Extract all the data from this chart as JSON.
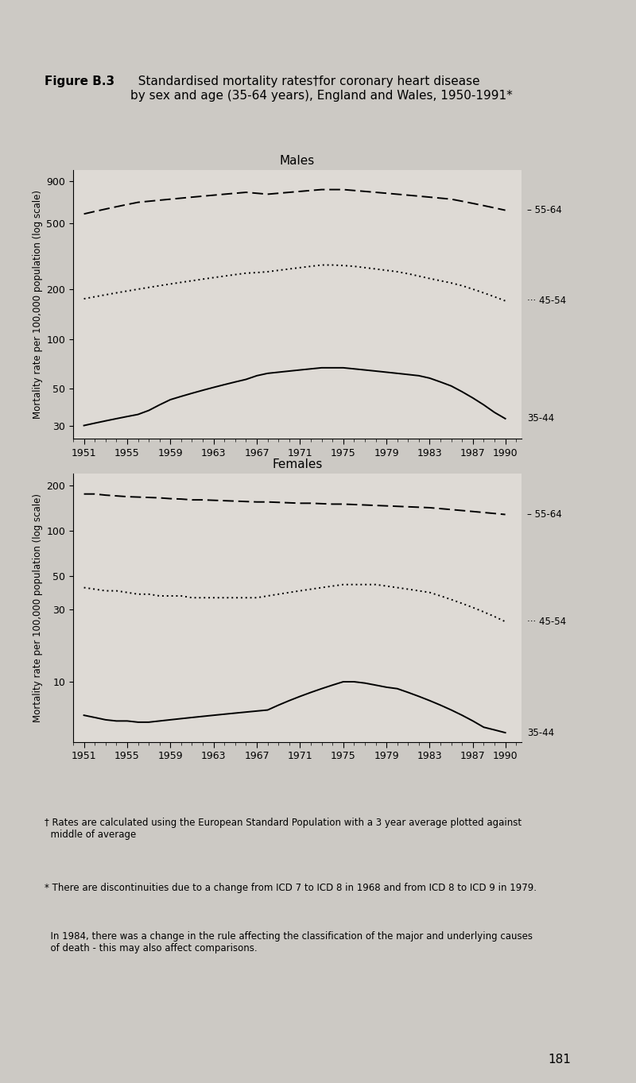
{
  "title_bold": "Figure B.3",
  "title_rest": "  Standardised mortality rates†for coronary heart disease\nby sex and age (35-64 years), England and Wales, 1950-1991*",
  "ylabel": "Mortality rate per 100,000 population (log scale)",
  "footnote1": "† Rates are calculated using the European Standard Population with a 3 year average plotted against\n  middle of average",
  "footnote2": "* There are discontinuities due to a change from ICD 7 to ICD 8 in 1968 and from ICD 8 to ICD 9 in 1979.",
  "footnote3": "  In 1984, there was a change in the rule affecting the classification of the major and underlying causes\n  of death - this may also affect comparisons.",
  "page_number": "181",
  "background_color": "#ccc9c4",
  "plot_bg_color": "#dedad5",
  "years": [
    1951,
    1952,
    1953,
    1954,
    1955,
    1956,
    1957,
    1958,
    1959,
    1960,
    1961,
    1962,
    1963,
    1964,
    1965,
    1966,
    1967,
    1968,
    1969,
    1970,
    1971,
    1972,
    1973,
    1974,
    1975,
    1976,
    1977,
    1978,
    1979,
    1980,
    1981,
    1982,
    1983,
    1984,
    1985,
    1986,
    1987,
    1988,
    1989,
    1990
  ],
  "males_55_64": [
    570,
    590,
    610,
    630,
    650,
    670,
    680,
    690,
    700,
    710,
    720,
    730,
    740,
    750,
    760,
    770,
    760,
    750,
    760,
    770,
    780,
    790,
    800,
    800,
    800,
    790,
    780,
    770,
    760,
    750,
    740,
    730,
    720,
    710,
    700,
    680,
    660,
    640,
    620,
    600
  ],
  "males_45_54": [
    175,
    180,
    185,
    190,
    195,
    200,
    205,
    210,
    215,
    220,
    225,
    230,
    235,
    240,
    245,
    250,
    252,
    255,
    260,
    265,
    270,
    275,
    280,
    280,
    278,
    275,
    270,
    265,
    260,
    255,
    248,
    240,
    232,
    225,
    218,
    210,
    200,
    190,
    180,
    170
  ],
  "males_35_44": [
    30,
    31,
    32,
    33,
    34,
    35,
    37,
    40,
    43,
    45,
    47,
    49,
    51,
    53,
    55,
    57,
    60,
    62,
    63,
    64,
    65,
    66,
    67,
    67,
    67,
    66,
    65,
    64,
    63,
    62,
    61,
    60,
    58,
    55,
    52,
    48,
    44,
    40,
    36,
    33
  ],
  "females_55_64": [
    175,
    175,
    172,
    170,
    168,
    167,
    166,
    165,
    163,
    162,
    160,
    160,
    159,
    158,
    157,
    156,
    155,
    155,
    154,
    153,
    152,
    152,
    151,
    150,
    150,
    149,
    148,
    147,
    146,
    145,
    144,
    143,
    142,
    140,
    138,
    136,
    134,
    132,
    130,
    128
  ],
  "females_45_54": [
    42,
    41,
    40,
    40,
    39,
    38,
    38,
    37,
    37,
    37,
    36,
    36,
    36,
    36,
    36,
    36,
    36,
    37,
    38,
    39,
    40,
    41,
    42,
    43,
    44,
    44,
    44,
    44,
    43,
    42,
    41,
    40,
    39,
    37,
    35,
    33,
    31,
    29,
    27,
    25
  ],
  "females_35_44": [
    6.0,
    5.8,
    5.6,
    5.5,
    5.5,
    5.4,
    5.4,
    5.5,
    5.6,
    5.7,
    5.8,
    5.9,
    6.0,
    6.1,
    6.2,
    6.3,
    6.4,
    6.5,
    7.0,
    7.5,
    8.0,
    8.5,
    9.0,
    9.5,
    10.0,
    10.0,
    9.8,
    9.5,
    9.2,
    9.0,
    8.5,
    8.0,
    7.5,
    7.0,
    6.5,
    6.0,
    5.5,
    5.0,
    4.8,
    4.6
  ],
  "xticks": [
    1951,
    1955,
    1959,
    1963,
    1967,
    1971,
    1975,
    1979,
    1983,
    1987,
    1990
  ],
  "males_yticks": [
    30,
    50,
    100,
    200,
    500,
    900
  ],
  "females_yticks": [
    10,
    30,
    50,
    100,
    200
  ],
  "males_ylim": [
    25,
    1050
  ],
  "females_ylim": [
    4.0,
    240
  ]
}
